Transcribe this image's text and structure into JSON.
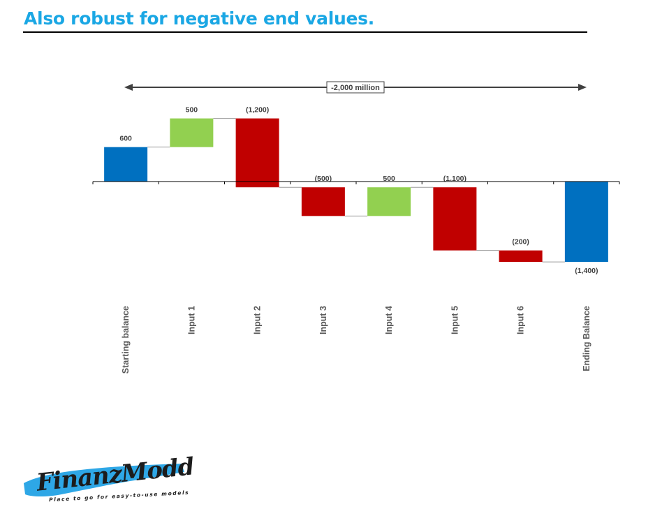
{
  "slide": {
    "title": "Also robust for negative end values."
  },
  "logo": {
    "wordmark": "FinanzModd",
    "tagline": "Place to go for easy-to-use models",
    "brush_color": "#2ea7e6"
  },
  "colors": {
    "total": "#0070c0",
    "increase": "#92d050",
    "decrease": "#c00000",
    "title": "#1aa7e4"
  },
  "chart_data": {
    "type": "bar",
    "subtype": "waterfall",
    "categories": [
      "Starting balance",
      "Input 1",
      "Input 2",
      "Input 3",
      "Input 4",
      "Input 5",
      "Input 6",
      "Ending Balance"
    ],
    "values": [
      600,
      500,
      -1200,
      -500,
      500,
      -1100,
      -200,
      -1400
    ],
    "kinds": [
      "total",
      "increase",
      "decrease",
      "decrease",
      "increase",
      "decrease",
      "decrease",
      "total"
    ],
    "data_labels": [
      "600",
      "500",
      "(1,200)",
      "(500)",
      "500",
      "(1,100)",
      "(200)",
      "(1,400)"
    ],
    "annotation": "-2,000 million",
    "ylim": [
      -1400,
      1100
    ],
    "grid": false,
    "legend": "none"
  }
}
